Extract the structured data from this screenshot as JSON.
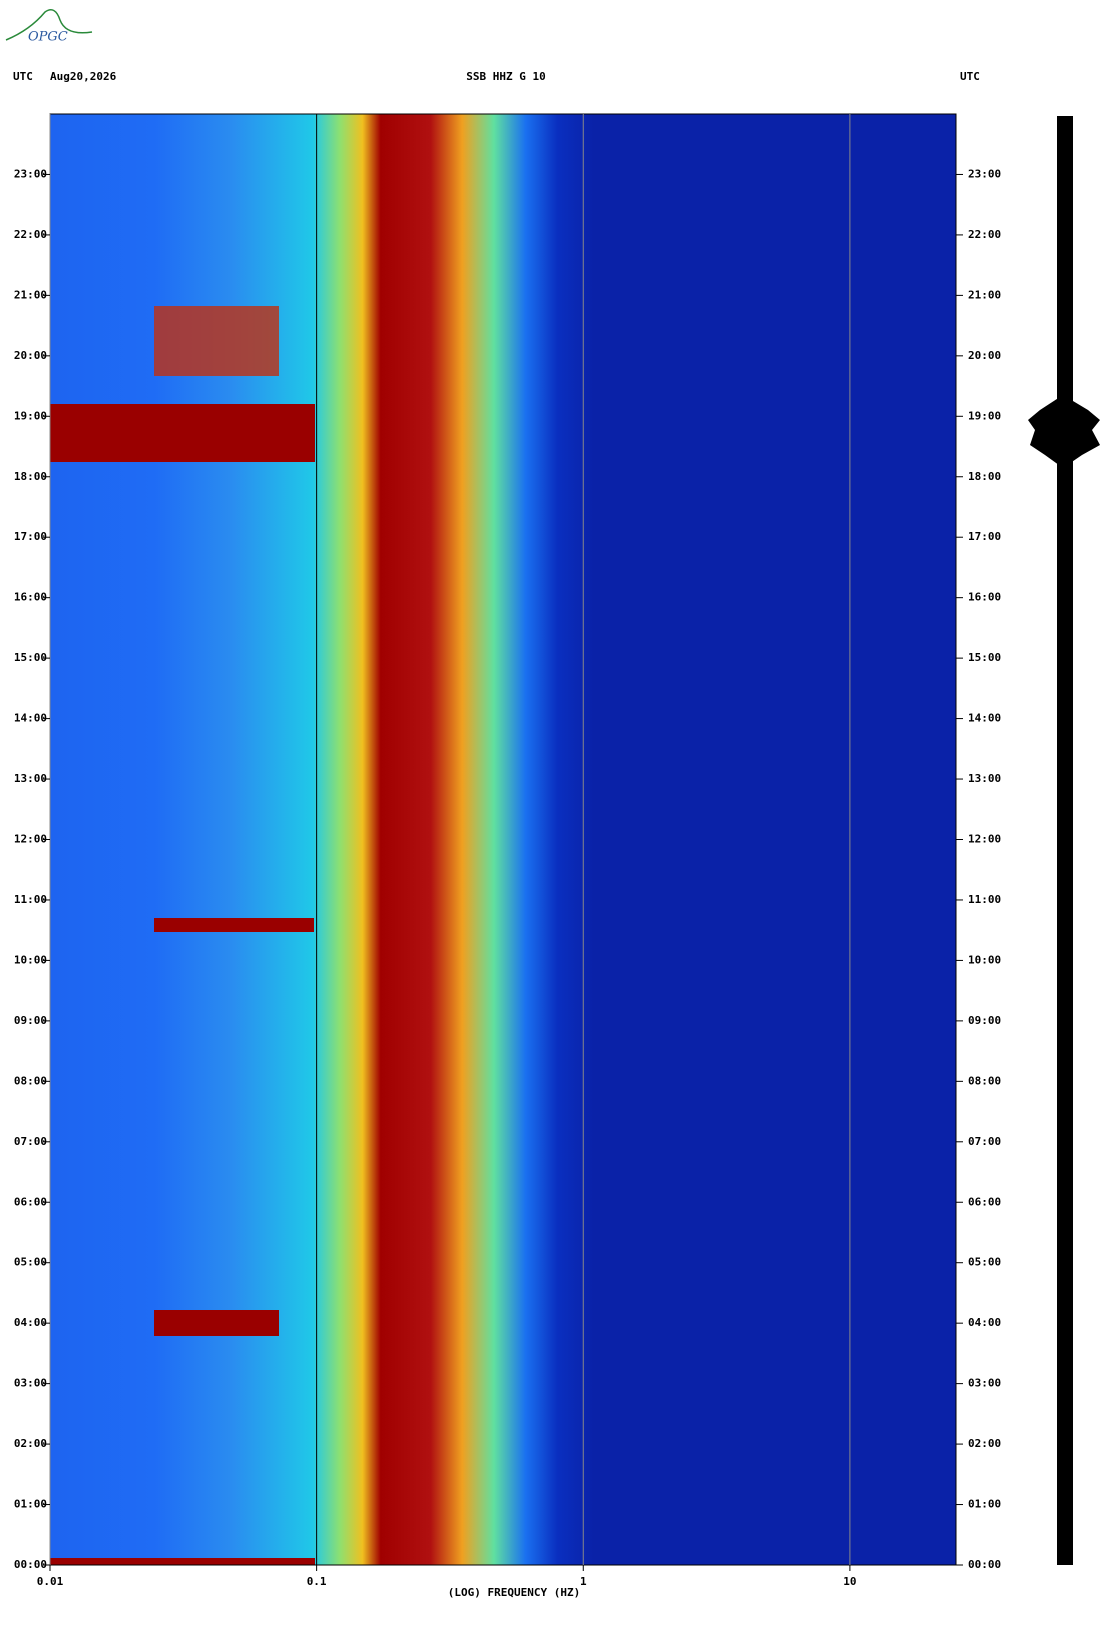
{
  "logo": "OPGC",
  "chart_data": {
    "type": "spectrogram",
    "timezone_left": "UTC",
    "date": "Aug20,2026",
    "title": "SSB HHZ G 10",
    "timezone_right": "UTC",
    "xlabel": "(LOG) FREQUENCY (HZ)",
    "xscale": "log",
    "xlim": [
      0.01,
      25
    ],
    "xticks": [
      0.01,
      0.1,
      1,
      10
    ],
    "ylim": [
      0,
      24
    ],
    "yticks": [
      {
        "value": 0,
        "label": "00:00"
      },
      {
        "value": 1,
        "label": "01:00"
      },
      {
        "value": 2,
        "label": "02:00"
      },
      {
        "value": 3,
        "label": "03:00"
      },
      {
        "value": 4,
        "label": "04:00"
      },
      {
        "value": 5,
        "label": "05:00"
      },
      {
        "value": 6,
        "label": "06:00"
      },
      {
        "value": 7,
        "label": "07:00"
      },
      {
        "value": 8,
        "label": "08:00"
      },
      {
        "value": 9,
        "label": "09:00"
      },
      {
        "value": 10,
        "label": "10:00"
      },
      {
        "value": 11,
        "label": "11:00"
      },
      {
        "value": 12,
        "label": "12:00"
      },
      {
        "value": 13,
        "label": "13:00"
      },
      {
        "value": 14,
        "label": "14:00"
      },
      {
        "value": 15,
        "label": "15:00"
      },
      {
        "value": 16,
        "label": "16:00"
      },
      {
        "value": 17,
        "label": "17:00"
      },
      {
        "value": 18,
        "label": "18:00"
      },
      {
        "value": 19,
        "label": "19:00"
      },
      {
        "value": 20,
        "label": "20:00"
      },
      {
        "value": 21,
        "label": "21:00"
      },
      {
        "value": 22,
        "label": "22:00"
      },
      {
        "value": 23,
        "label": "23:00"
      }
    ]
  }
}
